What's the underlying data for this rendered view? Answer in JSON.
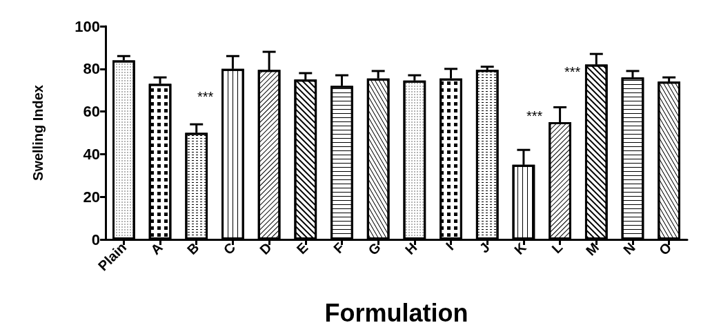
{
  "chart_data": {
    "type": "bar",
    "xlabel": "Formulation",
    "ylabel": "Swelling Index",
    "categories": [
      "Plain",
      "A",
      "B",
      "C",
      "D",
      "E",
      "F",
      "G",
      "H",
      "I",
      "J",
      "K",
      "L",
      "M",
      "N",
      "O"
    ],
    "values": [
      84,
      73,
      50,
      80,
      79.5,
      75,
      72,
      75.5,
      74.5,
      75.5,
      79.5,
      35,
      55,
      82,
      76,
      74
    ],
    "errors": [
      [
        84,
        86
      ],
      [
        73,
        76
      ],
      [
        50,
        54
      ],
      [
        80,
        86
      ],
      [
        79.5,
        88
      ],
      [
        75,
        78
      ],
      [
        72,
        77
      ],
      [
        75.5,
        79
      ],
      [
        74.5,
        77
      ],
      [
        75.5,
        80
      ],
      [
        79.5,
        81
      ],
      [
        35,
        42
      ],
      [
        55,
        62
      ],
      [
        82,
        87
      ],
      [
        76,
        79
      ],
      [
        74,
        76
      ]
    ],
    "color": "#000000",
    "ylim": [
      0,
      100
    ],
    "yticks": [
      0,
      20,
      40,
      60,
      80,
      100
    ],
    "grid": false,
    "annotations": [
      "***",
      "***",
      "***"
    ]
  }
}
